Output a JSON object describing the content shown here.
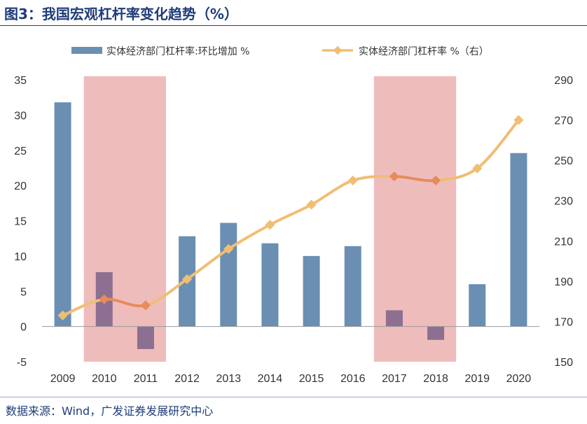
{
  "page": {
    "title": "图3：我国宏观杠杆率变化趋势（%）",
    "source": "数据来源：Wind，广发证券发展研究中心"
  },
  "colors": {
    "title": "#1f3c7a",
    "bar": "#6a8fb3",
    "bar_overlap": "#8c6f91",
    "line": "#f0be73",
    "line_overlap": "#e58c5b",
    "shade": "#efbcbc",
    "axis": "#333333"
  },
  "chart_data": {
    "type": "bar+line",
    "categories": [
      "2009",
      "2010",
      "2011",
      "2012",
      "2013",
      "2014",
      "2015",
      "2016",
      "2017",
      "2018",
      "2019",
      "2020"
    ],
    "series": [
      {
        "name": "实体经济部门杠杆率:环比增加 %",
        "type": "bar",
        "axis": "left",
        "values": [
          31.8,
          7.7,
          -3.2,
          12.8,
          14.7,
          11.8,
          10.0,
          11.4,
          2.3,
          -1.9,
          6.0,
          24.6
        ]
      },
      {
        "name": "实体经济部门杠杆率 %（右）",
        "type": "line",
        "axis": "right",
        "values": [
          173,
          181,
          178,
          191,
          206,
          218,
          228,
          240,
          242,
          240,
          246,
          270
        ]
      }
    ],
    "y_left": {
      "range": [
        -5,
        35
      ],
      "ticks": [
        35,
        30,
        25,
        20,
        15,
        10,
        5,
        0,
        -5
      ]
    },
    "y_right": {
      "range": [
        150,
        290
      ],
      "ticks": [
        290,
        270,
        250,
        230,
        210,
        190,
        170,
        150
      ]
    },
    "shaded_periods": [
      {
        "from": "2010",
        "to": "2011"
      },
      {
        "from": "2017",
        "to": "2018"
      }
    ],
    "legend": [
      "实体经济部门杠杆率:环比增加 %",
      "实体经济部门杠杆率 %（右）"
    ],
    "legend_position": "top",
    "grid": false
  }
}
